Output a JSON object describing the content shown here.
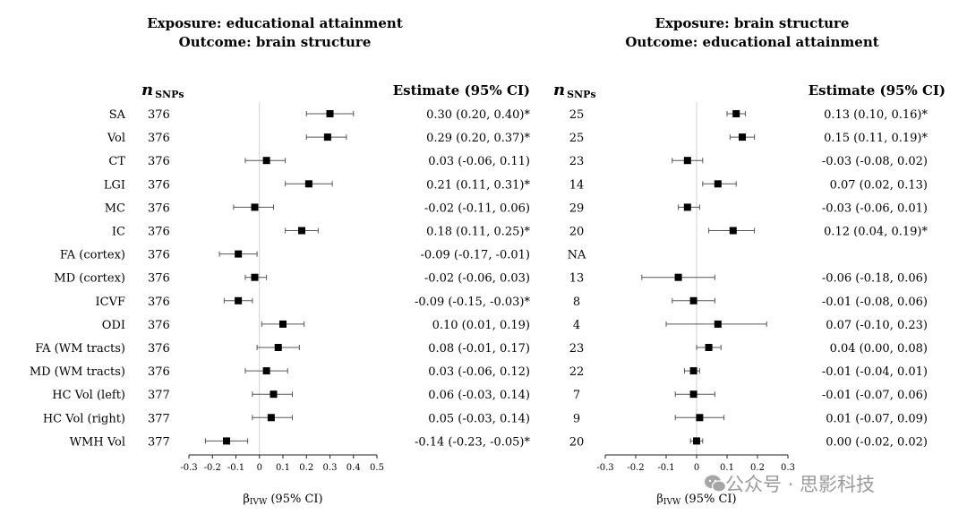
{
  "chart_data": [
    {
      "type": "forest",
      "title": [
        "Exposure: educational attainment",
        "Outcome: brain structure"
      ],
      "nsnps_header": "n",
      "nsnps_sub": "SNPs",
      "estimate_header": "Estimate (95% CI)",
      "xlabel_main": "β",
      "xlabel_sub": "IVW",
      "xlabel_tail": " (95% CI)",
      "xlim": [
        -0.3,
        0.5
      ],
      "xticks": [
        "-0.3",
        "-0.2",
        "-0.1",
        "0",
        "0.1",
        "0.2",
        "0.3",
        "0.4",
        "0.5"
      ],
      "rows": [
        {
          "label": "SA",
          "n": "376",
          "est": 0.3,
          "lo": 0.2,
          "hi": 0.4,
          "text": "0.30 (0.20, 0.40)*"
        },
        {
          "label": "Vol",
          "n": "376",
          "est": 0.29,
          "lo": 0.2,
          "hi": 0.37,
          "text": "0.29 (0.20, 0.37)*"
        },
        {
          "label": "CT",
          "n": "376",
          "est": 0.03,
          "lo": -0.06,
          "hi": 0.11,
          "text": "0.03 (-0.06, 0.11)"
        },
        {
          "label": "LGI",
          "n": "376",
          "est": 0.21,
          "lo": 0.11,
          "hi": 0.31,
          "text": "0.21 (0.11, 0.31)*"
        },
        {
          "label": "MC",
          "n": "376",
          "est": -0.02,
          "lo": -0.11,
          "hi": 0.06,
          "text": "-0.02 (-0.11, 0.06)"
        },
        {
          "label": "IC",
          "n": "376",
          "est": 0.18,
          "lo": 0.11,
          "hi": 0.25,
          "text": "0.18 (0.11, 0.25)*"
        },
        {
          "label": "FA (cortex)",
          "n": "376",
          "est": -0.09,
          "lo": -0.17,
          "hi": -0.01,
          "text": "-0.09 (-0.17, -0.01)"
        },
        {
          "label": "MD (cortex)",
          "n": "376",
          "est": -0.02,
          "lo": -0.06,
          "hi": 0.03,
          "text": "-0.02 (-0.06, 0.03)"
        },
        {
          "label": "ICVF",
          "n": "376",
          "est": -0.09,
          "lo": -0.15,
          "hi": -0.03,
          "text": "-0.09 (-0.15, -0.03)*"
        },
        {
          "label": "ODI",
          "n": "376",
          "est": 0.1,
          "lo": 0.01,
          "hi": 0.19,
          "text": "0.10 (0.01, 0.19)"
        },
        {
          "label": "FA (WM tracts)",
          "n": "376",
          "est": 0.08,
          "lo": -0.01,
          "hi": 0.17,
          "text": "0.08 (-0.01, 0.17)"
        },
        {
          "label": "MD (WM tracts)",
          "n": "376",
          "est": 0.03,
          "lo": -0.06,
          "hi": 0.12,
          "text": "0.03 (-0.06, 0.12)"
        },
        {
          "label": "HC Vol (left)",
          "n": "377",
          "est": 0.06,
          "lo": -0.03,
          "hi": 0.14,
          "text": "0.06 (-0.03, 0.14)"
        },
        {
          "label": "HC Vol (right)",
          "n": "377",
          "est": 0.05,
          "lo": -0.03,
          "hi": 0.14,
          "text": "0.05 (-0.03, 0.14)"
        },
        {
          "label": "WMH Vol",
          "n": "377",
          "est": -0.14,
          "lo": -0.23,
          "hi": -0.05,
          "text": "-0.14 (-0.23, -0.05)*"
        }
      ]
    },
    {
      "type": "forest",
      "title": [
        "Exposure: brain structure",
        "Outcome: educational attainment"
      ],
      "nsnps_header": "n",
      "nsnps_sub": "SNPs",
      "estimate_header": "Estimate (95% CI)",
      "xlabel_main": "β",
      "xlabel_sub": "IVW",
      "xlabel_tail": " (95% CI)",
      "xlim": [
        -0.3,
        0.3
      ],
      "xticks": [
        "-0.3",
        "-0.2",
        "-0.1",
        "0",
        "0.1",
        "0.2",
        "0.3"
      ],
      "rows": [
        {
          "n": "25",
          "est": 0.13,
          "lo": 0.1,
          "hi": 0.16,
          "text": "0.13 (0.10, 0.16)*"
        },
        {
          "n": "25",
          "est": 0.15,
          "lo": 0.11,
          "hi": 0.19,
          "text": "0.15 (0.11, 0.19)*"
        },
        {
          "n": "23",
          "est": -0.03,
          "lo": -0.08,
          "hi": 0.02,
          "text": "-0.03 (-0.08, 0.02)"
        },
        {
          "n": "14",
          "est": 0.07,
          "lo": 0.02,
          "hi": 0.13,
          "text": "0.07 (0.02, 0.13)"
        },
        {
          "n": "29",
          "est": -0.03,
          "lo": -0.06,
          "hi": 0.01,
          "text": "-0.03 (-0.06, 0.01)"
        },
        {
          "n": "20",
          "est": 0.12,
          "lo": 0.04,
          "hi": 0.19,
          "text": "0.12 (0.04, 0.19)*"
        },
        {
          "n": "NA",
          "est": null,
          "lo": null,
          "hi": null,
          "text": ""
        },
        {
          "n": "13",
          "est": -0.06,
          "lo": -0.18,
          "hi": 0.06,
          "text": "-0.06 (-0.18, 0.06)"
        },
        {
          "n": "8",
          "est": -0.01,
          "lo": -0.08,
          "hi": 0.06,
          "text": "-0.01 (-0.08, 0.06)"
        },
        {
          "n": "4",
          "est": 0.07,
          "lo": -0.1,
          "hi": 0.23,
          "text": "0.07 (-0.10, 0.23)"
        },
        {
          "n": "23",
          "est": 0.04,
          "lo": 0.0,
          "hi": 0.08,
          "text": "0.04 (0.00, 0.08)"
        },
        {
          "n": "22",
          "est": -0.01,
          "lo": -0.04,
          "hi": 0.01,
          "text": "-0.01 (-0.04, 0.01)"
        },
        {
          "n": "7",
          "est": -0.01,
          "lo": -0.07,
          "hi": 0.06,
          "text": "-0.01 (-0.07, 0.06)"
        },
        {
          "n": "9",
          "est": 0.01,
          "lo": -0.07,
          "hi": 0.09,
          "text": "0.01 (-0.07, 0.09)"
        },
        {
          "n": "20",
          "est": 0.0,
          "lo": -0.02,
          "hi": 0.02,
          "text": "0.00 (-0.02, 0.02)"
        }
      ]
    }
  ],
  "watermark": "公众号 · 思影科技"
}
